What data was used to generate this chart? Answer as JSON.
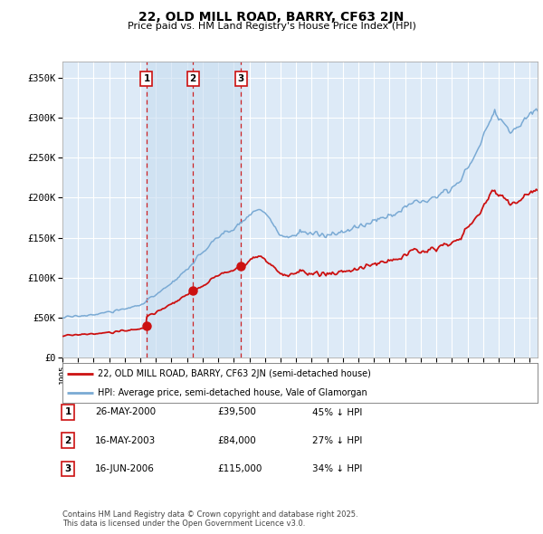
{
  "title": "22, OLD MILL ROAD, BARRY, CF63 2JN",
  "subtitle": "Price paid vs. HM Land Registry's House Price Index (HPI)",
  "xlim": [
    1995.0,
    2025.5
  ],
  "ylim": [
    0,
    370000
  ],
  "yticks": [
    0,
    50000,
    100000,
    150000,
    200000,
    250000,
    300000,
    350000
  ],
  "ytick_labels": [
    "£0",
    "£50K",
    "£100K",
    "£150K",
    "£200K",
    "£250K",
    "£300K",
    "£350K"
  ],
  "hpi_color": "#7aaad4",
  "price_color": "#cc1111",
  "vline_color": "#cc0000",
  "shade_color": "#c8ddf0",
  "sale_dates": [
    2000.4,
    2003.38,
    2006.46
  ],
  "sale_prices": [
    39500,
    84000,
    115000
  ],
  "sale_labels": [
    "1",
    "2",
    "3"
  ],
  "legend_entry1": "22, OLD MILL ROAD, BARRY, CF63 2JN (semi-detached house)",
  "legend_entry2": "HPI: Average price, semi-detached house, Vale of Glamorgan",
  "table_entries": [
    {
      "num": "1",
      "date": "26-MAY-2000",
      "price": "£39,500",
      "hpi": "45% ↓ HPI"
    },
    {
      "num": "2",
      "date": "16-MAY-2003",
      "price": "£84,000",
      "hpi": "27% ↓ HPI"
    },
    {
      "num": "3",
      "date": "16-JUN-2006",
      "price": "£115,000",
      "hpi": "34% ↓ HPI"
    }
  ],
  "footnote": "Contains HM Land Registry data © Crown copyright and database right 2025.\nThis data is licensed under the Open Government Licence v3.0.",
  "plot_bg_color": "#ddeaf7"
}
